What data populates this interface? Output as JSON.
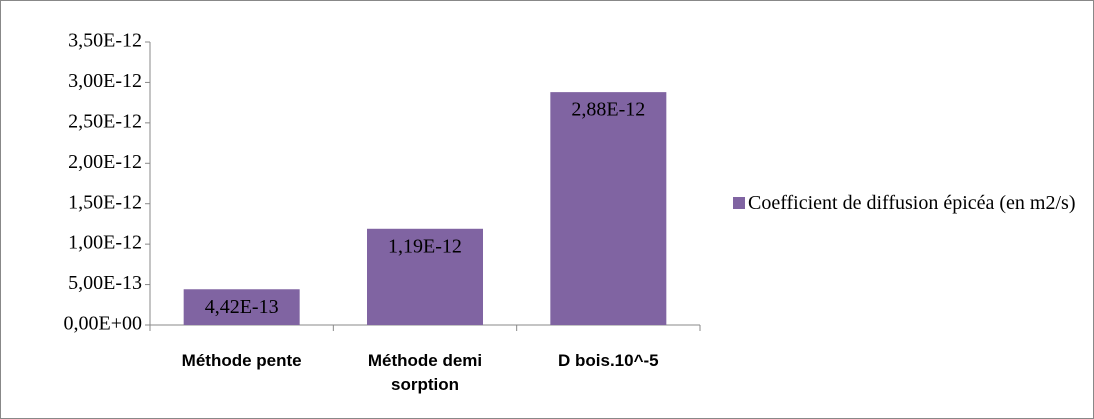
{
  "chart_data": {
    "type": "bar",
    "categories": [
      "Méthode pente",
      "Méthode demi sorption",
      "D bois.10^-5"
    ],
    "series": [
      {
        "name": "Coefficient de diffusion épicéa (en m2/s)",
        "color": "#8064a2",
        "values": [
          4.42e-13,
          1.19e-12,
          2.88e-12
        ],
        "value_labels": [
          "4,42E-13",
          "1,19E-12",
          "2,88E-12"
        ]
      }
    ],
    "ylim": [
      0,
      3.5e-12
    ],
    "yticks": [
      {
        "value": 0,
        "label": "0,00E+00"
      },
      {
        "value": 5e-13,
        "label": "5,00E-13"
      },
      {
        "value": 1e-12,
        "label": "1,00E-12"
      },
      {
        "value": 1.5e-12,
        "label": "1,50E-12"
      },
      {
        "value": 2e-12,
        "label": "2,00E-12"
      },
      {
        "value": 2.5e-12,
        "label": "2,50E-12"
      },
      {
        "value": 3e-12,
        "label": "3,00E-12"
      },
      {
        "value": 3.5e-12,
        "label": "3,50E-12"
      }
    ],
    "legend": "right",
    "grid": false
  }
}
